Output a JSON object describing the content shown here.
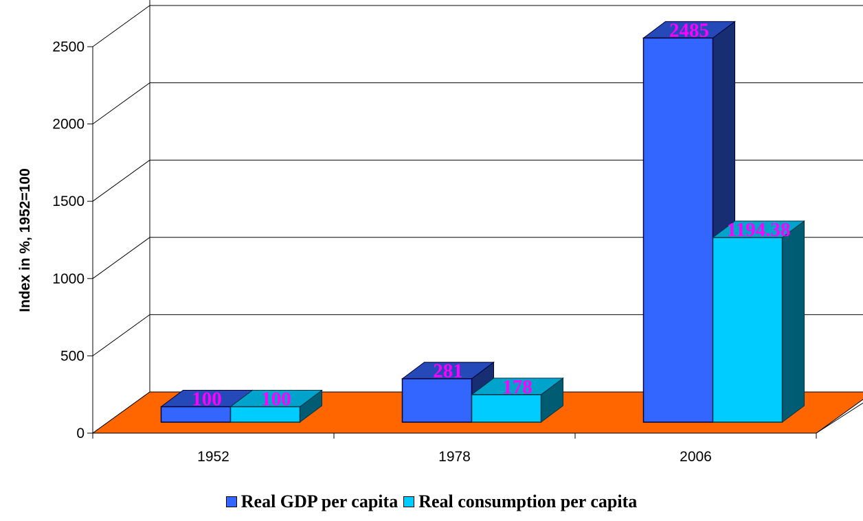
{
  "chart_data": {
    "type": "bar",
    "categories": [
      "1952",
      "1978",
      "2006"
    ],
    "series": [
      {
        "name": "Real GDP per capita",
        "values": [
          100,
          281,
          2485
        ],
        "labels": [
          "100",
          "281",
          "2485"
        ],
        "color": "#3366ff"
      },
      {
        "name": "Real consumption per capita",
        "values": [
          100,
          178,
          1194.38
        ],
        "labels": [
          "100",
          "178",
          "1194.38"
        ],
        "color": "#00ccff"
      }
    ],
    "title": "",
    "xlabel": "",
    "ylabel": "Index in %, 1952=100",
    "ylim": [
      0,
      2500
    ],
    "yticks": [
      "0",
      "500",
      "1000",
      "1500",
      "2000",
      "2500"
    ],
    "grid": true,
    "three_d": true,
    "floor_color": "#ff6600",
    "data_label_color": "#ff00ff",
    "legend_position": "bottom"
  }
}
